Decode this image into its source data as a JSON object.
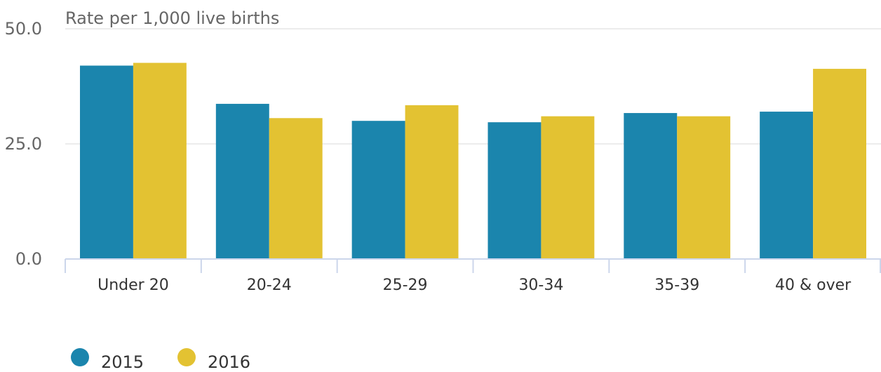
{
  "chart_data": {
    "type": "bar",
    "ylabel": "Rate per 1,000 live births",
    "xlabel": "",
    "categories": [
      "Under 20",
      "20-24",
      "25-29",
      "30-34",
      "35-39",
      "40 & over"
    ],
    "series": [
      {
        "name": "2015",
        "color": "#1b85ad",
        "values": [
          42.0,
          33.7,
          30.0,
          29.7,
          31.7,
          32.0
        ]
      },
      {
        "name": "2016",
        "color": "#e3c232",
        "values": [
          42.6,
          30.6,
          33.4,
          31.0,
          31.0,
          41.3
        ]
      }
    ],
    "ylim": [
      0,
      50
    ],
    "yticks": [
      0,
      25,
      50
    ],
    "ytick_labels": [
      "0.0",
      "25.0",
      "50.0"
    ],
    "grid": true,
    "legend": "bottom-left"
  }
}
